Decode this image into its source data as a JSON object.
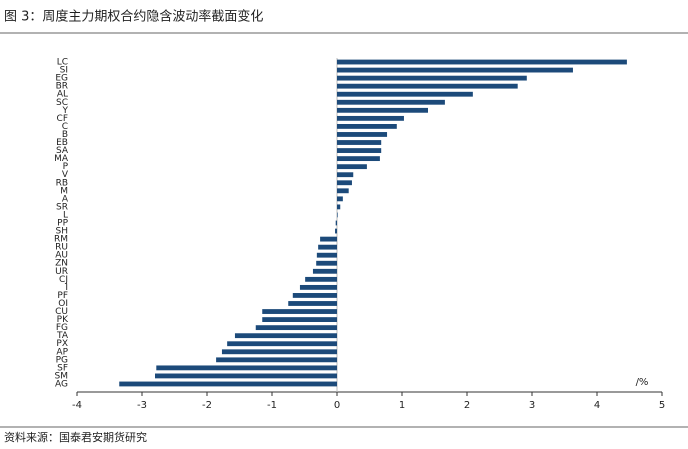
{
  "chart_data": {
    "type": "barh",
    "title": "图 3：周度主力期权合约隐含波动率截面变化",
    "source": "资料来源：国泰君安期货研究",
    "x_label": "/%",
    "categories": [
      "LC",
      "SI",
      "EG",
      "BR",
      "AL",
      "SC",
      "Y",
      "CF",
      "C",
      "B",
      "EB",
      "SA",
      "MA",
      "P",
      "V",
      "RB",
      "M",
      "A",
      "SR",
      "L",
      "PP",
      "SH",
      "RM",
      "RU",
      "AU",
      "ZN",
      "UR",
      "CJ",
      "I",
      "PF",
      "OI",
      "CU",
      "PK",
      "FG",
      "TA",
      "PX",
      "AP",
      "PG",
      "SF",
      "SM",
      "AG"
    ],
    "values": [
      4.46,
      3.63,
      2.92,
      2.78,
      2.09,
      1.66,
      1.4,
      1.03,
      0.92,
      0.77,
      0.68,
      0.68,
      0.66,
      0.46,
      0.25,
      0.23,
      0.18,
      0.09,
      0.05,
      0.01,
      -0.02,
      -0.03,
      -0.26,
      -0.29,
      -0.31,
      -0.32,
      -0.37,
      -0.49,
      -0.57,
      -0.68,
      -0.75,
      -1.15,
      -1.15,
      -1.25,
      -1.57,
      -1.69,
      -1.77,
      -1.86,
      -2.78,
      -2.8,
      -3.35
    ],
    "color": "#1c4a7a",
    "xlim": [
      -4,
      5
    ],
    "xticks": [
      -4,
      -3,
      -2,
      -1,
      0,
      1,
      2,
      3,
      4,
      5
    ]
  }
}
